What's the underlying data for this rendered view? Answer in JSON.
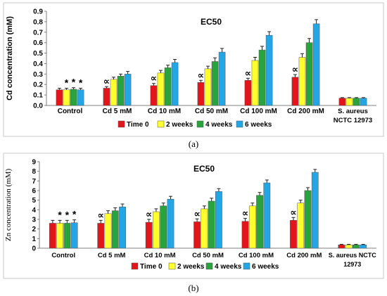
{
  "captions": [
    "(a)",
    "(b)"
  ],
  "colors": {
    "Time 0": "#e3151b",
    "2 weeks": "#ffff2e",
    "4 weeks": "#29a33e",
    "6 weeks": "#23a6e6"
  },
  "chart_data": [
    {
      "type": "bar",
      "title": "EC50",
      "ylabel": "Cd concentration (mM)",
      "ylim": [
        0,
        0.9
      ],
      "yticks": [
        "0.0",
        "0.1",
        "0.2",
        "0.3",
        "0.4",
        "0.5",
        "0.6",
        "0.7",
        "0.8",
        "0.9"
      ],
      "categories": [
        "Control",
        "Cd 5 mM",
        "Cd 10 mM",
        "Cd 50 mM",
        "Cd 100 mM",
        "Cd 200 mM",
        "S. aureus NCTC 12973"
      ],
      "series": [
        {
          "name": "Time 0",
          "values": [
            0.15,
            0.165,
            0.19,
            0.22,
            0.24,
            0.27,
            0.07
          ],
          "errors": [
            0.015,
            0.015,
            0.02,
            0.02,
            0.02,
            0.025,
            0.005
          ]
        },
        {
          "name": "2 weeks",
          "values": [
            0.15,
            0.25,
            0.31,
            0.35,
            0.43,
            0.46,
            0.07
          ],
          "errors": [
            0.015,
            0.02,
            0.025,
            0.025,
            0.03,
            0.035,
            0.005
          ]
        },
        {
          "name": "4 weeks",
          "values": [
            0.155,
            0.28,
            0.36,
            0.42,
            0.53,
            0.6,
            0.07
          ],
          "errors": [
            0.015,
            0.02,
            0.025,
            0.035,
            0.035,
            0.04,
            0.005
          ]
        },
        {
          "name": "6 weeks",
          "values": [
            0.15,
            0.3,
            0.41,
            0.51,
            0.67,
            0.78,
            0.07
          ],
          "errors": [
            0.015,
            0.025,
            0.03,
            0.035,
            0.035,
            0.04,
            0.005
          ]
        }
      ],
      "annotations": {
        "stars": "*",
        "star_groups": [
          0
        ],
        "symbol": "∝",
        "symbol_groups": [
          1,
          2,
          3,
          4,
          5
        ]
      },
      "legend": "bottom-center",
      "grid": false
    },
    {
      "type": "bar",
      "title": "EC50",
      "ylabel": "Zn concentration (mM)",
      "ylim": [
        0,
        9
      ],
      "yticks": [
        "0",
        "1",
        "2",
        "3",
        "4",
        "5",
        "6",
        "7",
        "8",
        "9"
      ],
      "categories": [
        "Control",
        "Cd 5 mM",
        "Cd 10 mM",
        "Cd 50 mM",
        "Cd 100 mM",
        "Cd 200 mM",
        "S. aureus NCTC 12973"
      ],
      "series": [
        {
          "name": "Time 0",
          "values": [
            2.6,
            2.6,
            2.7,
            2.75,
            2.8,
            2.9,
            0.35
          ],
          "errors": [
            0.3,
            0.3,
            0.3,
            0.3,
            0.3,
            0.3,
            0.05
          ]
        },
        {
          "name": "2 weeks",
          "values": [
            2.6,
            3.6,
            3.8,
            4.1,
            4.4,
            4.7,
            0.35
          ],
          "errors": [
            0.3,
            0.3,
            0.3,
            0.3,
            0.3,
            0.3,
            0.05
          ]
        },
        {
          "name": "4 weeks",
          "values": [
            2.6,
            3.9,
            4.4,
            4.9,
            5.5,
            6.0,
            0.35
          ],
          "errors": [
            0.3,
            0.3,
            0.3,
            0.3,
            0.3,
            0.3,
            0.05
          ]
        },
        {
          "name": "6 weeks",
          "values": [
            2.65,
            4.3,
            5.1,
            5.9,
            6.8,
            7.9,
            0.35
          ],
          "errors": [
            0.3,
            0.3,
            0.3,
            0.3,
            0.3,
            0.3,
            0.05
          ]
        }
      ],
      "annotations": {
        "stars": "*",
        "star_groups": [
          0
        ],
        "symbol": "∝",
        "symbol_groups": [
          1,
          2,
          3,
          4,
          5
        ]
      },
      "legend": "bottom-center",
      "grid": false
    }
  ]
}
